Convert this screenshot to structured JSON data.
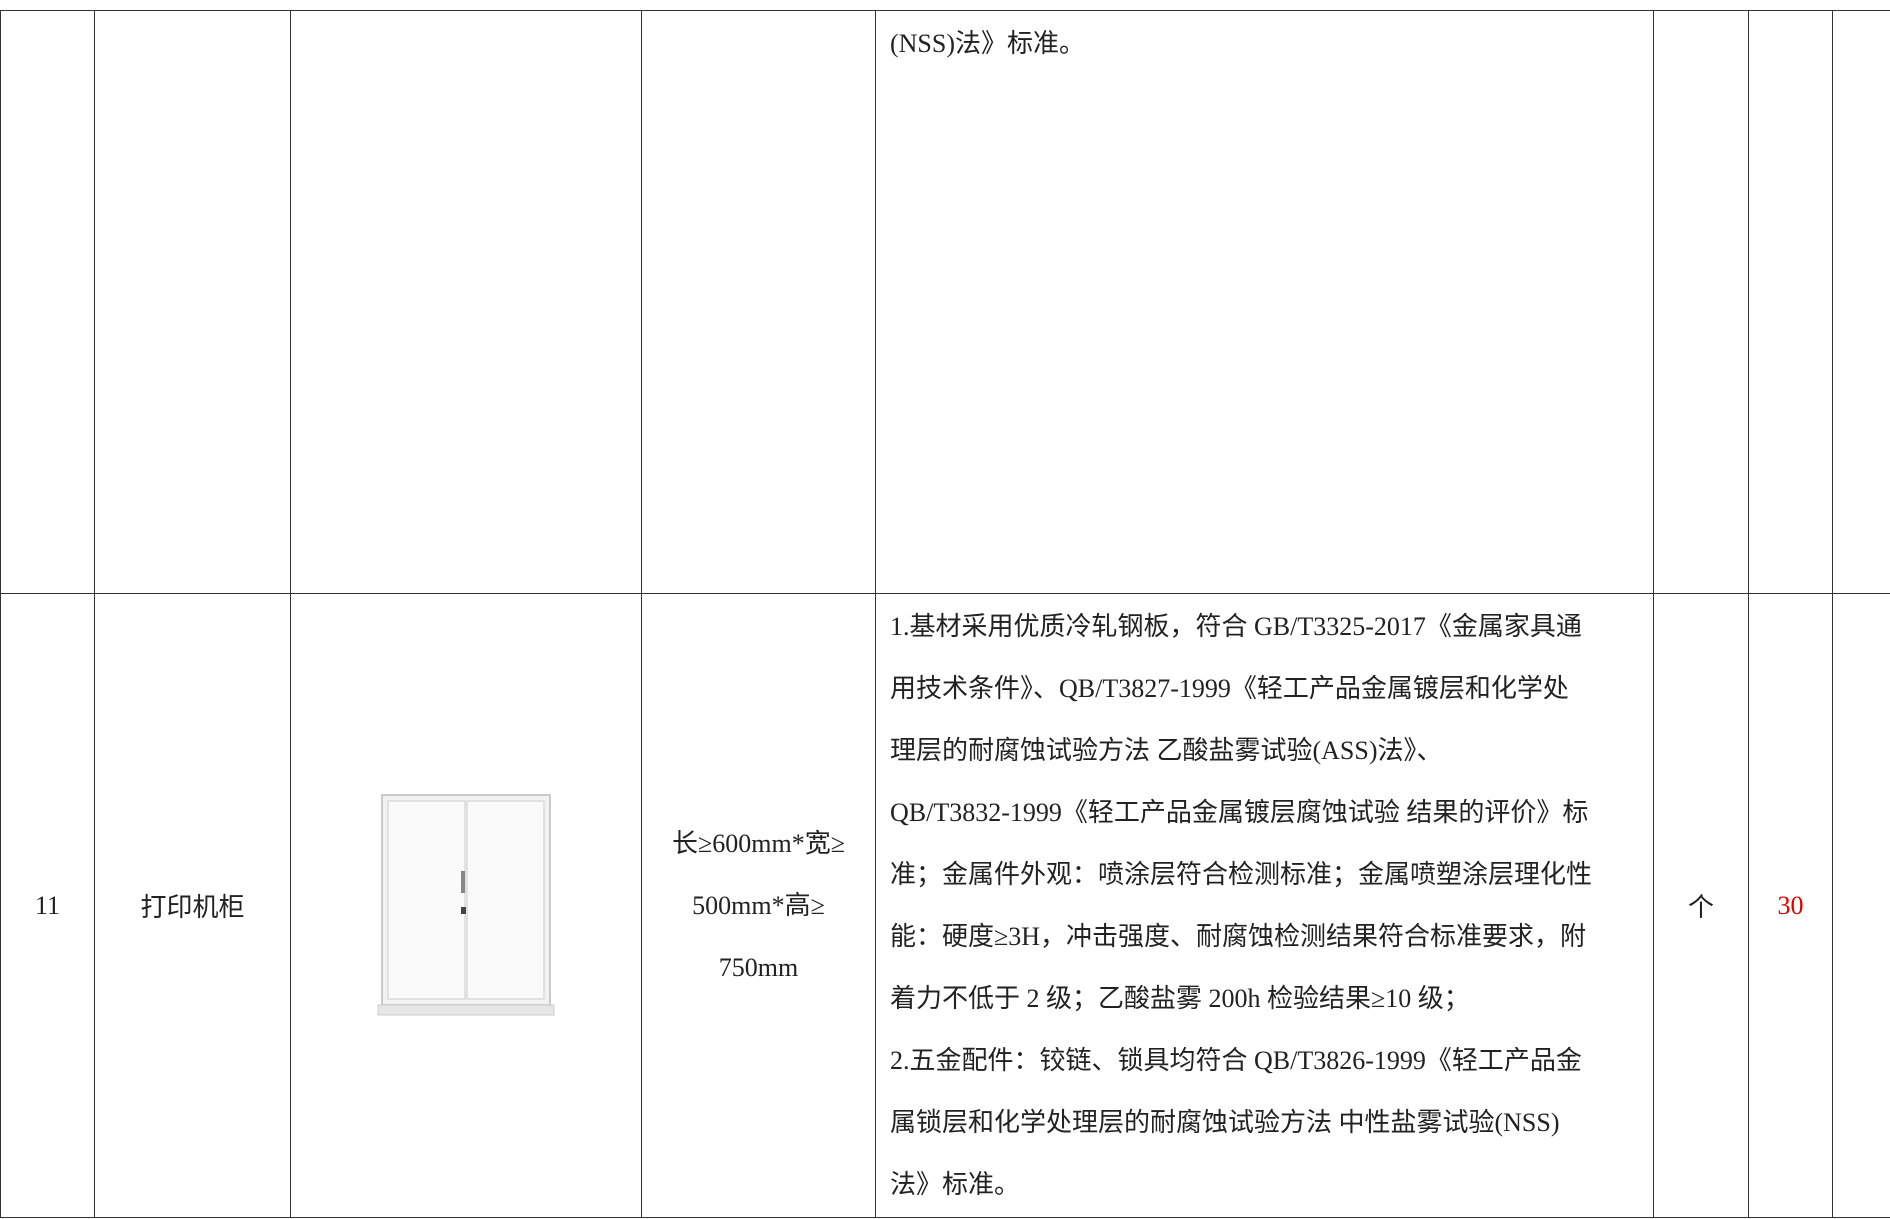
{
  "table": {
    "rows": [
      {
        "description_lines": [
          "(NSS)法》标准。"
        ]
      },
      {
        "index": "11",
        "name": "打印机柜",
        "spec_lines": [
          "长≥600mm*宽≥",
          "500mm*高≥",
          "750mm"
        ],
        "description_lines": [
          "1.基材采用优质冷轧钢板，符合 GB/T3325-2017《金属家具通",
          "用技术条件》、QB/T3827-1999《轻工产品金属镀层和化学处",
          "理层的耐腐蚀试验方法 乙酸盐雾试验(ASS)法》、",
          "QB/T3832-1999《轻工产品金属镀层腐蚀试验 结果的评价》标",
          "准；金属件外观：喷涂层符合检测标准；金属喷塑涂层理化性",
          "能：硬度≥3H，冲击强度、耐腐蚀检测结果符合标准要求，附",
          "着力不低于 2 级；乙酸盐雾 200h 检验结果≥10 级；",
          "2.五金配件：铰链、锁具均符合 QB/T3826-1999《轻工产品金",
          "属锁层和化学处理层的耐腐蚀试验方法 中性盐雾试验(NSS)",
          "法》标准。"
        ],
        "unit": "个",
        "quantity": 30
      }
    ]
  }
}
